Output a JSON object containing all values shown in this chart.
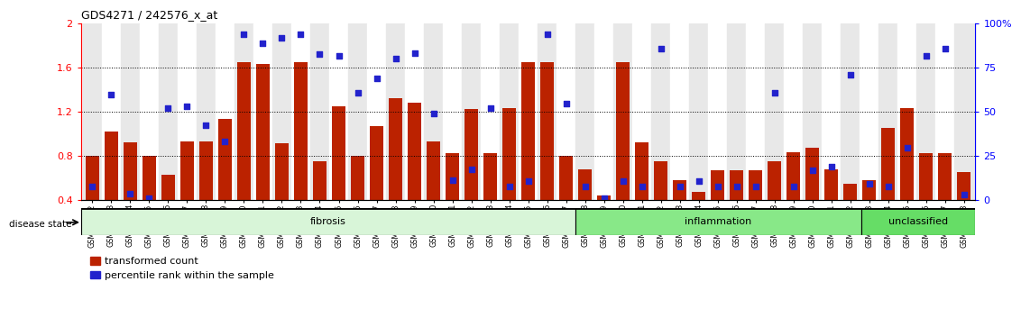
{
  "title": "GDS4271 / 242576_x_at",
  "samples": [
    "GSM380382",
    "GSM380383",
    "GSM380384",
    "GSM380385",
    "GSM380386",
    "GSM380387",
    "GSM380388",
    "GSM380389",
    "GSM380390",
    "GSM380391",
    "GSM380392",
    "GSM380393",
    "GSM380394",
    "GSM380395",
    "GSM380396",
    "GSM380397",
    "GSM380398",
    "GSM380399",
    "GSM380400",
    "GSM380401",
    "GSM380402",
    "GSM380403",
    "GSM380404",
    "GSM380405",
    "GSM380406",
    "GSM380407",
    "GSM380408",
    "GSM380409",
    "GSM380410",
    "GSM380411",
    "GSM380412",
    "GSM380413",
    "GSM380414",
    "GSM380415",
    "GSM380416",
    "GSM380417",
    "GSM380418",
    "GSM380419",
    "GSM380420",
    "GSM380421",
    "GSM380422",
    "GSM380423",
    "GSM380424",
    "GSM380425",
    "GSM380426",
    "GSM380427",
    "GSM380428"
  ],
  "red_values": [
    0.8,
    1.02,
    0.92,
    0.8,
    0.63,
    0.93,
    0.93,
    1.13,
    1.65,
    1.63,
    0.91,
    1.65,
    0.75,
    1.25,
    0.8,
    1.07,
    1.32,
    1.28,
    0.93,
    0.82,
    1.22,
    0.82,
    1.23,
    1.65,
    1.65,
    0.8,
    0.68,
    0.44,
    1.65,
    0.92,
    0.75,
    0.58,
    0.47,
    0.67,
    0.67,
    0.67,
    0.75,
    0.83,
    0.87,
    0.68,
    0.55,
    0.58,
    1.05,
    1.23,
    0.82,
    0.82,
    0.65
  ],
  "blue_values": [
    0.52,
    1.35,
    0.46,
    0.42,
    1.23,
    1.25,
    1.08,
    0.93,
    1.9,
    1.82,
    1.87,
    1.9,
    1.72,
    1.7,
    1.37,
    1.5,
    1.68,
    1.73,
    1.18,
    0.58,
    0.68,
    1.23,
    0.52,
    0.57,
    1.9,
    1.27,
    0.52,
    0.42,
    0.57,
    0.52,
    1.77,
    0.52,
    0.57,
    0.52,
    0.52,
    0.52,
    1.37,
    0.52,
    0.67,
    0.7,
    1.53,
    0.55,
    0.52,
    0.87,
    1.7,
    1.77,
    0.45
  ],
  "disease_groups": [
    {
      "label": "fibrosis",
      "start": 0,
      "end": 26,
      "color": "#d8f5d8"
    },
    {
      "label": "inflammation",
      "start": 26,
      "end": 41,
      "color": "#88e888"
    },
    {
      "label": "unclassified",
      "start": 41,
      "end": 47,
      "color": "#66dd66"
    }
  ],
  "ylim": [
    0.4,
    2.0
  ],
  "yticks_left": [
    0.4,
    0.8,
    1.2,
    1.6,
    2.0
  ],
  "ytick_labels_left": [
    "0.4",
    "0.8",
    "1.2",
    "1.6",
    "2"
  ],
  "pct_ticks": [
    0,
    25,
    50,
    75,
    100
  ],
  "pct_tick_labels": [
    "0",
    "25",
    "50",
    "75",
    "100%"
  ],
  "dotted_lines": [
    0.8,
    1.2,
    1.6
  ],
  "bar_color": "#bb2200",
  "dot_color": "#2222cc",
  "bar_width": 0.7,
  "bg_color_odd": "#e8e8e8",
  "bg_color_even": "#ffffff"
}
